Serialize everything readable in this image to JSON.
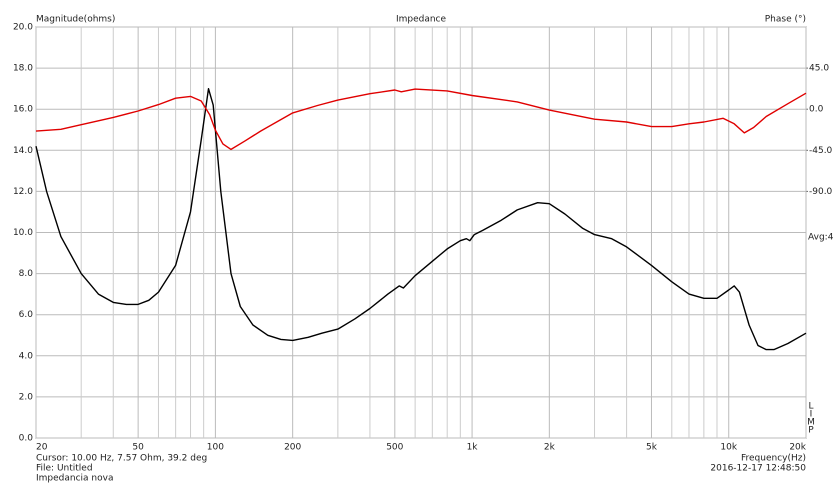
{
  "chart_data": {
    "type": "line",
    "title": "Impedance",
    "ylabel": "Magnitude(ohms)",
    "y2label": "Phase (°)",
    "xlabel": "Frequency(Hz)",
    "annotation": "Avg:4",
    "side_letters": [
      "L",
      "I",
      "M",
      "P"
    ],
    "footer_left": [
      "Cursor: 10.00 Hz, 7.57 Ohm, 39.2 deg",
      "File: Untitled",
      "Impedancia nova"
    ],
    "footer_right": "2016-12-17 12:48:50",
    "xscale": "log",
    "grid": true,
    "xlim": [
      20,
      20000
    ],
    "ylim": [
      0,
      20
    ],
    "y2lim": [
      -360,
      90
    ],
    "xticks": [
      20,
      50,
      100,
      200,
      500,
      {
        "value": 1000,
        "label": "1k"
      },
      {
        "value": 2000,
        "label": "2k"
      },
      {
        "value": 5000,
        "label": "5k"
      },
      {
        "value": 10000,
        "label": "10k"
      },
      {
        "value": 20000,
        "label": "20k"
      }
    ],
    "x_grid": [
      30,
      40,
      60,
      70,
      80,
      90,
      300,
      400,
      600,
      700,
      800,
      900,
      3000,
      4000,
      6000,
      7000,
      8000,
      9000
    ],
    "yticks": [
      {
        "value": 0,
        "label": "0.0"
      },
      {
        "value": 2,
        "label": "2.0"
      },
      {
        "value": 4,
        "label": "4.0"
      },
      {
        "value": 6,
        "label": "6.0"
      },
      {
        "value": 8,
        "label": "8.0"
      },
      {
        "value": 10,
        "label": "10.0"
      },
      {
        "value": 12,
        "label": "12.0"
      },
      {
        "value": 14,
        "label": "14.0"
      },
      {
        "value": 16,
        "label": "16.0"
      },
      {
        "value": 18,
        "label": "18.0"
      },
      {
        "value": 20,
        "label": "20.0"
      }
    ],
    "y2ticks": [
      {
        "value": 45,
        "label": "45.0"
      },
      {
        "value": 0,
        "label": "0.0"
      },
      {
        "value": -45,
        "label": "-45.0"
      },
      {
        "value": -90,
        "label": "-90.0"
      }
    ],
    "series": [
      {
        "color": "#000000",
        "axis": "y",
        "x": [
          20,
          22,
          25,
          30,
          35,
          40,
          45,
          50,
          55,
          60,
          70,
          80,
          88,
          94,
          98,
          105,
          115,
          125,
          140,
          160,
          180,
          200,
          230,
          260,
          300,
          350,
          400,
          470,
          520,
          540,
          600,
          700,
          800,
          900,
          950,
          980,
          1020,
          1100,
          1300,
          1500,
          1800,
          2000,
          2300,
          2700,
          3000,
          3500,
          4000,
          5000,
          6000,
          7000,
          8000,
          9000,
          10000,
          10500,
          11000,
          12000,
          13000,
          14000,
          15000,
          17000,
          20000
        ],
        "values": [
          14.2,
          12,
          9.8,
          8.0,
          7.0,
          6.6,
          6.5,
          6.5,
          6.7,
          7.1,
          8.4,
          11,
          14.5,
          17.0,
          16.2,
          12,
          8,
          6.4,
          5.5,
          5.0,
          4.8,
          4.75,
          4.9,
          5.1,
          5.3,
          5.8,
          6.3,
          7.0,
          7.4,
          7.3,
          7.9,
          8.6,
          9.2,
          9.6,
          9.7,
          9.6,
          9.9,
          10.1,
          10.6,
          11.1,
          11.45,
          11.4,
          10.9,
          10.2,
          9.9,
          9.7,
          9.3,
          8.4,
          7.6,
          7.0,
          6.8,
          6.8,
          7.2,
          7.4,
          7.1,
          5.5,
          4.5,
          4.3,
          4.3,
          4.6,
          5.1
        ]
      },
      {
        "color": "#e00000",
        "axis": "y2",
        "x": [
          20,
          25,
          30,
          40,
          50,
          60,
          70,
          80,
          88,
          95,
          100,
          107,
          115,
          130,
          150,
          200,
          250,
          300,
          400,
          500,
          530,
          600,
          800,
          1000,
          1500,
          2000,
          3000,
          4000,
          5000,
          6000,
          7000,
          8000,
          9500,
          10500,
          11500,
          12500,
          14000,
          17000,
          20000
        ],
        "values": [
          -24,
          -22,
          -17,
          -9,
          -2,
          5,
          12,
          14,
          9,
          -6,
          -23,
          -38,
          -44,
          -35,
          -24,
          -4,
          4,
          10,
          17,
          21,
          19,
          22,
          20,
          15,
          8,
          -1,
          -11,
          -14,
          -19,
          -19,
          -16,
          -14,
          -10,
          -16,
          -26,
          -20,
          -8,
          6,
          17.5
        ]
      }
    ]
  }
}
